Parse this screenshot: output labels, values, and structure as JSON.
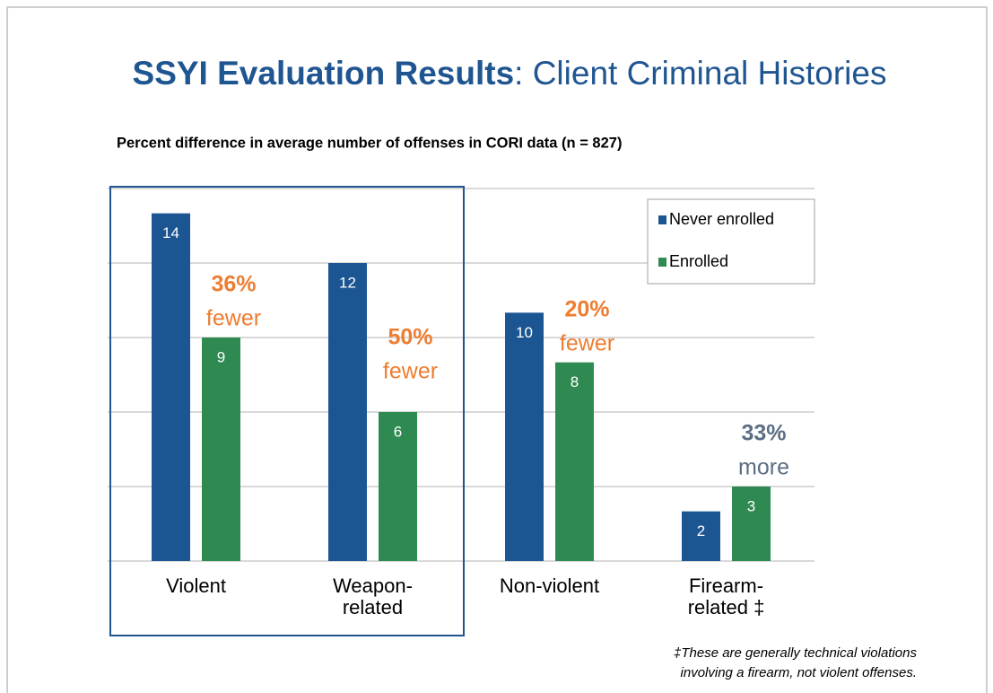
{
  "title": {
    "bold": "SSYI Evaluation Results",
    "rest": ": Client Criminal Histories"
  },
  "chart_data": {
    "type": "bar",
    "subtitle": "Percent difference in average number of offenses in CORI data (n = 827)",
    "categories": [
      "Violent",
      "Weapon-\nrelated",
      "Non-violent",
      "Firearm-\nrelated ‡"
    ],
    "series": [
      {
        "name": "Never enrolled",
        "color": "#1b5592",
        "values": [
          14,
          12,
          10,
          2
        ]
      },
      {
        "name": "Enrolled",
        "color": "#2f8a52",
        "values": [
          9,
          6,
          8,
          3
        ]
      }
    ],
    "ylim": [
      0,
      15
    ],
    "yticks": [
      0,
      3,
      6,
      9,
      12,
      15
    ],
    "grid": true,
    "legend": "upper right",
    "annotations": [
      {
        "percent": "36%",
        "word": "fewer",
        "color": "#ed7d31"
      },
      {
        "percent": "50%",
        "word": "fewer",
        "color": "#ed7d31"
      },
      {
        "percent": "20%",
        "word": "fewer",
        "color": "#ed7d31"
      },
      {
        "percent": "33%",
        "word": "more",
        "color": "#5b6e84"
      }
    ],
    "footnote": "‡These are generally technical violations\ninvolving a firearm, not violent offenses."
  }
}
